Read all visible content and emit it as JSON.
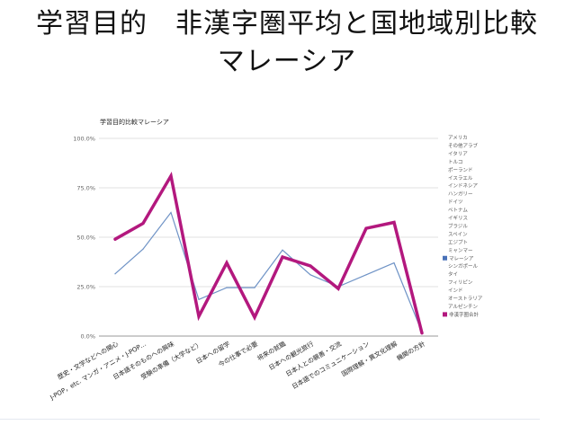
{
  "slide": {
    "title_line1": "学習目的　非漢字圏平均と国地域別比較",
    "title_line2": "マレーシア"
  },
  "chart_data": {
    "type": "line",
    "title": "学習目的比較マレーシア",
    "ylim": [
      0,
      100
    ],
    "yticks": [
      "0.0%",
      "25.0%",
      "50.0%",
      "75.0%",
      "100.0%"
    ],
    "grid": true,
    "legend_position": "right",
    "categories": [
      "歴史・文学などへの関心",
      "J-POP，etc. マンガ・アニメ・J-POP…",
      "日本語そのものへの興味",
      "受験の準備（大学など）",
      "日本への留学",
      "今の仕事で必要",
      "将来の就職",
      "日本への観光旅行",
      "日本人との親善・交流",
      "日本語でのコミュニケーション",
      "国際理解・異文化理解",
      "機関の方針"
    ],
    "series": [
      {
        "name": "マレーシア",
        "color": "#6f93c6",
        "width": 1.2,
        "values": [
          31.5,
          44,
          62.5,
          18.5,
          24.5,
          24.5,
          43.5,
          31,
          25,
          31,
          37,
          2
        ]
      },
      {
        "name": "非漢字圏合計",
        "color": "#b3187e",
        "width": 3.5,
        "values": [
          49,
          57,
          81,
          10,
          37,
          9.5,
          40,
          35.5,
          24,
          54.5,
          57.5,
          1.5
        ]
      }
    ],
    "legend": [
      {
        "label": "アメリカ",
        "color": ""
      },
      {
        "label": "その他アラブ",
        "color": ""
      },
      {
        "label": "イタリア",
        "color": ""
      },
      {
        "label": "トルコ",
        "color": ""
      },
      {
        "label": "ポーランド",
        "color": ""
      },
      {
        "label": "イスラエル",
        "color": ""
      },
      {
        "label": "インドネシア",
        "color": ""
      },
      {
        "label": "ハンガリー",
        "color": ""
      },
      {
        "label": "ドイツ",
        "color": ""
      },
      {
        "label": "ベトナム",
        "color": ""
      },
      {
        "label": "イギリス",
        "color": ""
      },
      {
        "label": "ブラジル",
        "color": ""
      },
      {
        "label": "スペイン",
        "color": ""
      },
      {
        "label": "エジプト",
        "color": ""
      },
      {
        "label": "ミャンマー",
        "color": ""
      },
      {
        "label": "マレーシア",
        "color": "#4a72b8"
      },
      {
        "label": "シンガポール",
        "color": ""
      },
      {
        "label": "タイ",
        "color": ""
      },
      {
        "label": "フィリピン",
        "color": ""
      },
      {
        "label": "インド",
        "color": ""
      },
      {
        "label": "オーストラリア",
        "color": ""
      },
      {
        "label": "アルゼンチン",
        "color": ""
      },
      {
        "label": "非漢字圏合計",
        "color": "#b3187e"
      }
    ]
  }
}
